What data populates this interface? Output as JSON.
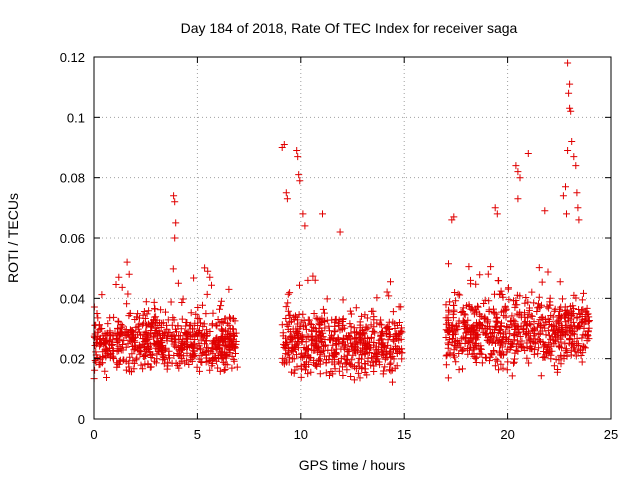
{
  "chart_data": {
    "type": "scatter",
    "title": "Day 184 of 2018, Rate Of TEC Index for receiver saga",
    "xlabel": "GPS time / hours",
    "ylabel": "ROTI / TECUs",
    "xlim": [
      0,
      25
    ],
    "ylim": [
      0,
      0.12
    ],
    "xticks": [
      "0",
      "5",
      "10",
      "15",
      "20",
      "25"
    ],
    "xtick_values": [
      0,
      5,
      10,
      15,
      20,
      25
    ],
    "yticks": [
      "0",
      "0.02",
      "0.04",
      "0.06",
      "0.08",
      "0.1",
      "0.12"
    ],
    "ytick_values": [
      0,
      0.02,
      0.04,
      0.06,
      0.08,
      0.1,
      0.12
    ],
    "grid": true,
    "marker": "+",
    "color": "#e00000",
    "point_count_note": "approximate sample of dense point cloud",
    "series": [
      {
        "name": "ROTI",
        "segments": [
          {
            "x_start": 0.0,
            "x_end": 6.95,
            "typical": [
              0.012,
              0.038
            ]
          },
          {
            "x_start": 9.1,
            "x_end": 14.9,
            "typical": [
              0.01,
              0.04
            ]
          },
          {
            "x_start": 17.0,
            "x_end": 24.0,
            "typical": [
              0.012,
              0.045
            ]
          }
        ],
        "notable_points": [
          {
            "x": 3.85,
            "y": 0.074
          },
          {
            "x": 3.9,
            "y": 0.072
          },
          {
            "x": 3.95,
            "y": 0.065
          },
          {
            "x": 3.9,
            "y": 0.06
          },
          {
            "x": 1.2,
            "y": 0.047
          },
          {
            "x": 1.7,
            "y": 0.048
          },
          {
            "x": 1.6,
            "y": 0.052
          },
          {
            "x": 5.5,
            "y": 0.049
          },
          {
            "x": 5.6,
            "y": 0.047
          },
          {
            "x": 9.1,
            "y": 0.09
          },
          {
            "x": 9.2,
            "y": 0.091
          },
          {
            "x": 9.8,
            "y": 0.089
          },
          {
            "x": 9.85,
            "y": 0.087
          },
          {
            "x": 9.9,
            "y": 0.081
          },
          {
            "x": 9.95,
            "y": 0.079
          },
          {
            "x": 9.3,
            "y": 0.075
          },
          {
            "x": 9.35,
            "y": 0.073
          },
          {
            "x": 10.1,
            "y": 0.068
          },
          {
            "x": 11.05,
            "y": 0.068
          },
          {
            "x": 10.2,
            "y": 0.064
          },
          {
            "x": 11.9,
            "y": 0.062
          },
          {
            "x": 17.4,
            "y": 0.067
          },
          {
            "x": 17.3,
            "y": 0.066
          },
          {
            "x": 19.4,
            "y": 0.07
          },
          {
            "x": 19.5,
            "y": 0.068
          },
          {
            "x": 20.4,
            "y": 0.084
          },
          {
            "x": 20.5,
            "y": 0.082
          },
          {
            "x": 20.6,
            "y": 0.08
          },
          {
            "x": 20.5,
            "y": 0.073
          },
          {
            "x": 21.0,
            "y": 0.088
          },
          {
            "x": 21.8,
            "y": 0.069
          },
          {
            "x": 22.9,
            "y": 0.118
          },
          {
            "x": 23.0,
            "y": 0.111
          },
          {
            "x": 22.95,
            "y": 0.108
          },
          {
            "x": 23.0,
            "y": 0.103
          },
          {
            "x": 23.05,
            "y": 0.102
          },
          {
            "x": 23.1,
            "y": 0.092
          },
          {
            "x": 22.9,
            "y": 0.089
          },
          {
            "x": 23.2,
            "y": 0.087
          },
          {
            "x": 23.3,
            "y": 0.084
          },
          {
            "x": 22.8,
            "y": 0.077
          },
          {
            "x": 23.35,
            "y": 0.075
          },
          {
            "x": 22.7,
            "y": 0.074
          },
          {
            "x": 23.4,
            "y": 0.07
          },
          {
            "x": 22.85,
            "y": 0.068
          },
          {
            "x": 23.45,
            "y": 0.066
          }
        ]
      }
    ]
  }
}
